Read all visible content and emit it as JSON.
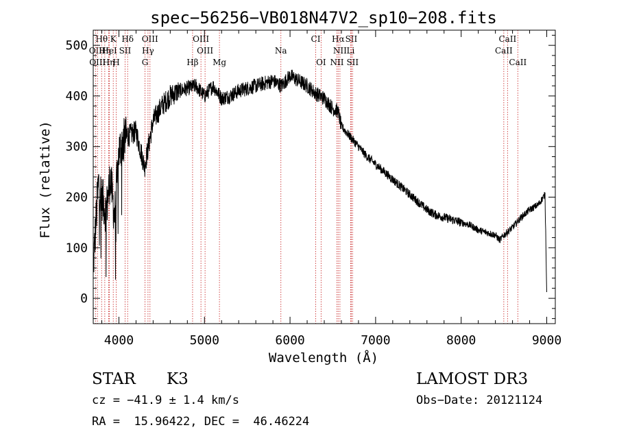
{
  "chart_data": {
    "type": "line",
    "title": "spec−56256−VB018N47V2_sp10−208.fits",
    "xlabel": "Wavelength (Å)",
    "ylabel": "Flux (relative)",
    "xlim": [
      3700,
      9100
    ],
    "ylim": [
      -50,
      530
    ],
    "xticks": [
      4000,
      5000,
      6000,
      7000,
      8000,
      9000
    ],
    "xtick_labels": [
      "4000",
      "5000",
      "6000",
      "7000",
      "8000",
      "9000"
    ],
    "yticks": [
      0,
      100,
      200,
      300,
      400,
      500
    ],
    "ytick_labels": [
      "0",
      "100",
      "200",
      "300",
      "400",
      "500"
    ],
    "line_color": "#000000",
    "marker_color": "#cc3333",
    "spectrum_anchors": {
      "x": [
        3700,
        3760,
        3800,
        3850,
        3900,
        3950,
        4000,
        4050,
        4100,
        4200,
        4300,
        4400,
        4500,
        4600,
        4700,
        4800,
        4900,
        5000,
        5100,
        5200,
        5300,
        5400,
        5500,
        5600,
        5700,
        5800,
        5900,
        6000,
        6100,
        6200,
        6300,
        6400,
        6500,
        6560,
        6600,
        6700,
        6800,
        6900,
        7000,
        7100,
        7200,
        7300,
        7400,
        7500,
        7600,
        7700,
        7800,
        7900,
        8000,
        8100,
        8200,
        8300,
        8400,
        8450,
        8500,
        8600,
        8700,
        8800,
        8900,
        8980,
        9000
      ],
      "y": [
        60,
        230,
        200,
        170,
        240,
        160,
        290,
        310,
        320,
        330,
        260,
        350,
        380,
        400,
        410,
        415,
        420,
        400,
        420,
        395,
        400,
        410,
        415,
        420,
        425,
        430,
        420,
        440,
        430,
        420,
        405,
        395,
        375,
        370,
        340,
        320,
        300,
        280,
        265,
        250,
        235,
        220,
        205,
        190,
        175,
        165,
        160,
        155,
        150,
        145,
        135,
        130,
        125,
        115,
        125,
        140,
        160,
        175,
        185,
        205,
        10
      ]
    },
    "line_markers": [
      {
        "label": "Hθ",
        "x": 3798,
        "row": 0
      },
      {
        "label": "K",
        "x": 3934,
        "row": 0
      },
      {
        "label": "Hδ",
        "x": 4102,
        "row": 0
      },
      {
        "label": "OIII",
        "x": 4363,
        "row": 0
      },
      {
        "label": "OIII",
        "x": 4959,
        "row": 0
      },
      {
        "label": "CI",
        "x": 6300,
        "row": 0
      },
      {
        "label": "Hα",
        "x": 6563,
        "row": 0
      },
      {
        "label": "SII",
        "x": 6716,
        "row": 0
      },
      {
        "label": "CaII",
        "x": 8542,
        "row": 0
      },
      {
        "label": "OII",
        "x": 3727,
        "row": 1
      },
      {
        "label": "Hη",
        "x": 3835,
        "row": 1
      },
      {
        "label": "HeI",
        "x": 3889,
        "row": 1
      },
      {
        "label": "SII",
        "x": 4072,
        "row": 1
      },
      {
        "label": "Hγ",
        "x": 4340,
        "row": 1
      },
      {
        "label": "OIII",
        "x": 5007,
        "row": 1
      },
      {
        "label": "Na",
        "x": 5893,
        "row": 1
      },
      {
        "label": "NII",
        "x": 6583,
        "row": 1
      },
      {
        "label": "Li",
        "x": 6708,
        "row": 1
      },
      {
        "label": "CaII",
        "x": 8498,
        "row": 1
      },
      {
        "label": "OIII",
        "x": 3750,
        "row": 2
      },
      {
        "label": "Hη",
        "x": 3880,
        "row": 2
      },
      {
        "label": "H",
        "x": 3968,
        "row": 2
      },
      {
        "label": "G",
        "x": 4305,
        "row": 2
      },
      {
        "label": "Hβ",
        "x": 4861,
        "row": 2
      },
      {
        "label": "Mg",
        "x": 5175,
        "row": 2
      },
      {
        "label": "OI",
        "x": 6363,
        "row": 2
      },
      {
        "label": "NII",
        "x": 6548,
        "row": 2
      },
      {
        "label": "SII",
        "x": 6731,
        "row": 2
      },
      {
        "label": "CaII",
        "x": 8662,
        "row": 2
      }
    ]
  },
  "footer": {
    "object_type": "STAR",
    "subclass": "K3",
    "survey": "LAMOST DR3",
    "redshift": "cz = −41.9 ± 1.4 km/s",
    "obs_date": "Obs−Date: 20121124",
    "coords": "RA =  15.96422, DEC =  46.46224"
  }
}
